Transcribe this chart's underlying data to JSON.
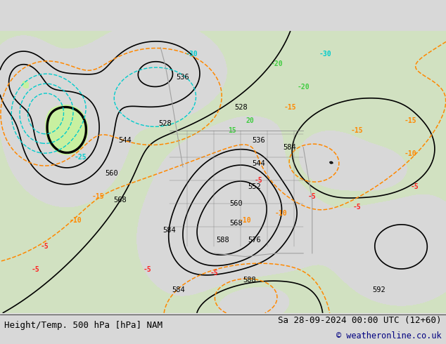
{
  "title_left": "Height/Temp. 500 hPa [hPa] NAM",
  "title_right": "Sa 28-09-2024 00:00 UTC (12+60)",
  "copyright": "© weatheronline.co.uk",
  "bg_color": "#d8d8d8",
  "map_bg_color": "#e8e8e8",
  "green_fill_color": "#c8f0a0",
  "height_contour_color": "#000000",
  "temp_warm_color": "#ff8800",
  "temp_cold_color": "#ff2020",
  "temp_cyan_color": "#00cccc",
  "temp_green_color": "#40cc40",
  "label_fontsize": 7.5,
  "title_fontsize": 9,
  "copyright_fontsize": 8.5
}
